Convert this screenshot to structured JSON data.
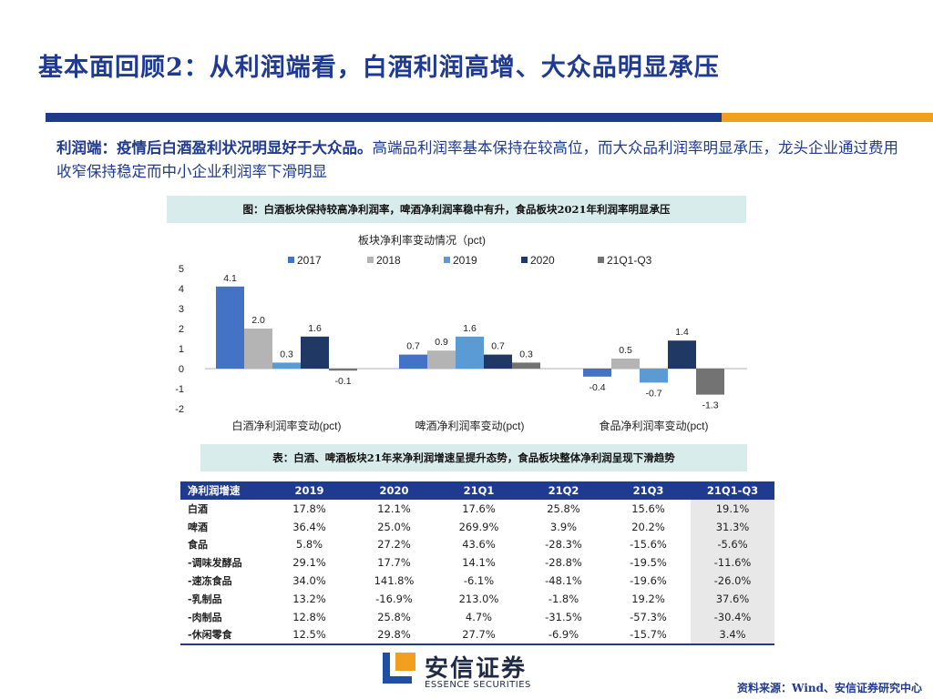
{
  "header": {
    "title": "基本面回顾2：从利润端看，白酒利润高增、大众品明显承压"
  },
  "intro": {
    "bold_text": "利润端：疫情后白酒盈利状况明显好于大众品。",
    "rest_text": "高端品利润率基本保持在较高位，而大众品利润率明显承压，龙头企业通过费用收窄保持稳定而中小企业利润率下滑明显"
  },
  "figure_caption": "图：白酒板块保持较高净利润率，啤酒净利润率稳中有升，食品板块2021年利润率明显承压",
  "chart_data": {
    "type": "bar",
    "title": "板块净利率变动情况（pct)",
    "categories": [
      "白酒净利润率变动(pct)",
      "啤酒净利润率变动(pct)",
      "食品净利润率变动(pct)"
    ],
    "series": [
      {
        "name": "2017",
        "values": [
          4.1,
          0.7,
          -0.4
        ],
        "color": "#4472c4"
      },
      {
        "name": "2018",
        "values": [
          2.0,
          0.9,
          0.5
        ],
        "color": "#b4b4b4"
      },
      {
        "name": "2019",
        "values": [
          0.3,
          1.6,
          -0.7
        ],
        "color": "#5b9bd5"
      },
      {
        "name": "2020",
        "values": [
          1.6,
          0.7,
          1.4
        ],
        "color": "#203864"
      },
      {
        "name": "21Q1-Q3",
        "values": [
          -0.1,
          0.3,
          -1.3
        ],
        "color": "#737373"
      }
    ],
    "value_labels": [
      [
        "4.1",
        "0.7",
        "-0.4"
      ],
      [
        "2.0",
        "0.9",
        "0.5"
      ],
      [
        "0.3",
        "1.6",
        "-0.7"
      ],
      [
        "1.6",
        "0.7",
        "1.4"
      ],
      [
        "-0.1",
        "0.3",
        "-1.3"
      ]
    ],
    "yticks": [
      "5",
      "4",
      "3",
      "2",
      "1",
      "0",
      "-1",
      "-2"
    ],
    "ylim": [
      -2,
      5
    ],
    "legend_position": "top",
    "grid": false
  },
  "table_caption": "表：白酒、啤酒板块21年来净利润增速呈提升态势，食品板块整体净利润呈现下滑趋势",
  "table": {
    "headers": [
      "净利润增速",
      "2019",
      "2020",
      "21Q1",
      "21Q2",
      "21Q3",
      "21Q1-Q3"
    ],
    "rows": [
      [
        "白酒",
        "17.8%",
        "12.1%",
        "17.6%",
        "25.8%",
        "15.6%",
        "19.1%"
      ],
      [
        "啤酒",
        "36.4%",
        "25.0%",
        "269.9%",
        "3.9%",
        "20.2%",
        "31.3%"
      ],
      [
        "食品",
        "5.8%",
        "27.2%",
        "43.6%",
        "-28.3%",
        "-15.6%",
        "-5.6%"
      ],
      [
        "-调味发酵品",
        "29.1%",
        "17.7%",
        "14.1%",
        "-28.8%",
        "-19.5%",
        "-11.6%"
      ],
      [
        "-速冻食品",
        "34.0%",
        "141.8%",
        "-6.1%",
        "-48.1%",
        "-19.6%",
        "-26.0%"
      ],
      [
        "-乳制品",
        "13.2%",
        "-16.9%",
        "213.0%",
        "-1.8%",
        "19.2%",
        "37.6%"
      ],
      [
        "-肉制品",
        "12.8%",
        "25.8%",
        "4.7%",
        "-31.5%",
        "-57.3%",
        "-30.4%"
      ],
      [
        "-休闲零食",
        "12.5%",
        "29.8%",
        "27.7%",
        "-6.9%",
        "-15.7%",
        "3.4%"
      ]
    ]
  },
  "footer": {
    "logo_cn": "安信证券",
    "logo_en": "ESSENCE SECURITIES",
    "source": "资料来源：Wind、安信证券研究中心"
  },
  "colors": {
    "brand_blue": "#1f3a8f",
    "accent_orange": "#f0a01e",
    "caption_bg": "#d9ecec"
  }
}
